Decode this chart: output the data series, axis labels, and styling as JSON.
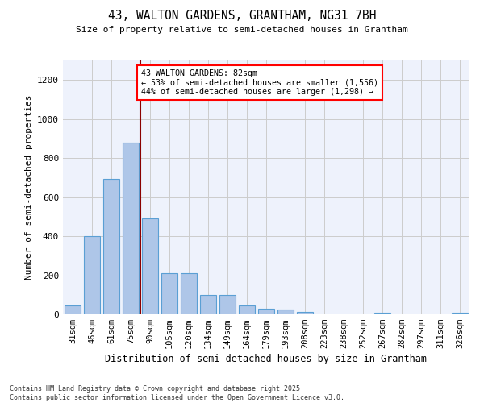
{
  "title1": "43, WALTON GARDENS, GRANTHAM, NG31 7BH",
  "title2": "Size of property relative to semi-detached houses in Grantham",
  "xlabel": "Distribution of semi-detached houses by size in Grantham",
  "ylabel": "Number of semi-detached properties",
  "categories": [
    "31sqm",
    "46sqm",
    "61sqm",
    "75sqm",
    "90sqm",
    "105sqm",
    "120sqm",
    "134sqm",
    "149sqm",
    "164sqm",
    "179sqm",
    "193sqm",
    "208sqm",
    "223sqm",
    "238sqm",
    "252sqm",
    "267sqm",
    "282sqm",
    "297sqm",
    "311sqm",
    "326sqm"
  ],
  "values": [
    45,
    400,
    695,
    880,
    490,
    210,
    210,
    100,
    100,
    45,
    30,
    25,
    13,
    0,
    0,
    0,
    10,
    0,
    0,
    0,
    10
  ],
  "bar_color": "#aec6e8",
  "bar_edge_color": "#5a9fd4",
  "annotation_box_text": "43 WALTON GARDENS: 82sqm\n← 53% of semi-detached houses are smaller (1,556)\n44% of semi-detached houses are larger (1,298) →",
  "footer1": "Contains HM Land Registry data © Crown copyright and database right 2025.",
  "footer2": "Contains public sector information licensed under the Open Government Licence v3.0.",
  "ylim": [
    0,
    1300
  ],
  "yticks": [
    0,
    200,
    400,
    600,
    800,
    1000,
    1200
  ],
  "grid_color": "#cccccc",
  "background_color": "#eef2fc",
  "red_line_x": 3.5
}
